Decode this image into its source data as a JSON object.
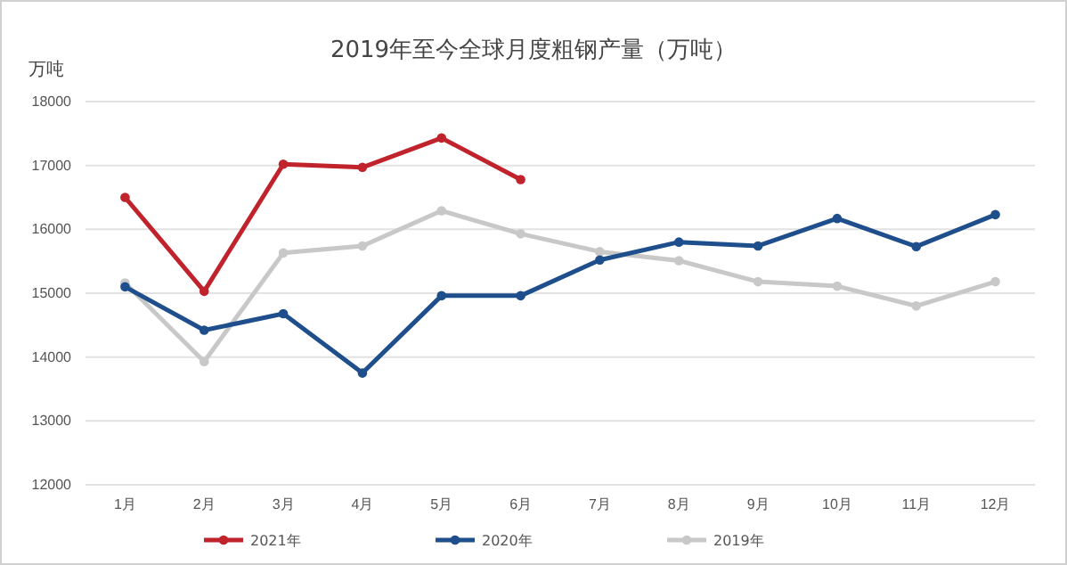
{
  "chart_data": {
    "type": "line",
    "title": "2019年至今全球月度粗钢产量（万吨）",
    "ylabel": "万吨",
    "categories": [
      "1月",
      "2月",
      "3月",
      "4月",
      "5月",
      "6月",
      "7月",
      "8月",
      "9月",
      "10月",
      "11月",
      "12月"
    ],
    "series": [
      {
        "name": "2021年",
        "color": "#c0232b",
        "values": [
          16500,
          15030,
          17020,
          16970,
          17430,
          16780,
          null,
          null,
          null,
          null,
          null,
          null
        ]
      },
      {
        "name": "2020年",
        "color": "#1f4e8c",
        "values": [
          15100,
          14420,
          14680,
          13750,
          14960,
          14960,
          15520,
          15800,
          15740,
          16170,
          15730,
          16230
        ]
      },
      {
        "name": "2019年",
        "color": "#c8c8c8",
        "values": [
          15160,
          13930,
          15630,
          15740,
          16290,
          15930,
          15650,
          15510,
          15180,
          15110,
          14800,
          15180
        ]
      }
    ],
    "ylim": [
      12000,
      18000
    ],
    "yticks": [
      12000,
      13000,
      14000,
      15000,
      16000,
      17000,
      18000
    ],
    "grid": "y",
    "legend": "bottom",
    "marker": "circle",
    "line_style": "solid"
  }
}
